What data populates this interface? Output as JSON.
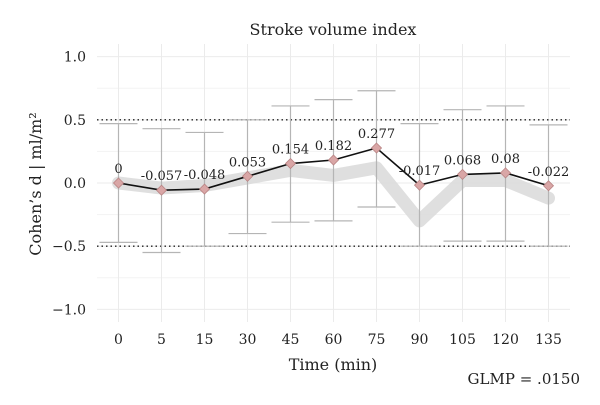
{
  "chart_data": {
    "type": "line",
    "title": "Stroke volume index",
    "xlabel": "Time (min)",
    "ylabel": "Cohen’s d | ml/m²",
    "categories": [
      "0",
      "5",
      "15",
      "30",
      "45",
      "60",
      "75",
      "90",
      "105",
      "120",
      "135"
    ],
    "values": [
      0,
      -0.057,
      -0.048,
      0.053,
      0.154,
      0.182,
      0.277,
      -0.017,
      0.068,
      0.08,
      -0.022
    ],
    "value_labels": [
      "0",
      "-0.057",
      "-0.048",
      "0.053",
      "0.154",
      "0.182",
      "0.277",
      "-0.017",
      "0.068",
      "0.08",
      "-0.022"
    ],
    "error_upper": [
      0.47,
      0.43,
      0.4,
      0.5,
      0.61,
      0.66,
      0.73,
      0.47,
      0.58,
      0.61,
      0.46
    ],
    "error_lower": [
      -0.47,
      -0.55,
      -0.5,
      -0.4,
      -0.31,
      -0.3,
      -0.19,
      -0.5,
      -0.46,
      -0.46,
      -0.5
    ],
    "background_band": [
      0,
      -0.04,
      -0.02,
      0.04,
      0.1,
      0.06,
      0.12,
      -0.3,
      0.02,
      0.02,
      -0.12
    ],
    "reference_lines": [
      0.5,
      -0.5
    ],
    "ylim": [
      -1.1,
      1.1
    ],
    "yticks": [
      1.0,
      0.5,
      0.0,
      -0.5,
      -1.0
    ],
    "ytick_labels": [
      "1.0",
      "0.5",
      "0.0",
      "−0.5",
      "−1.0"
    ],
    "grid": true,
    "annotation": "GLMP = .0150",
    "colors": {
      "line": "#111111",
      "marker": "#d9a6a6",
      "error_bar": "#b5b5b5",
      "band": "#d9d9d9",
      "grid": "#ebebeb"
    }
  }
}
